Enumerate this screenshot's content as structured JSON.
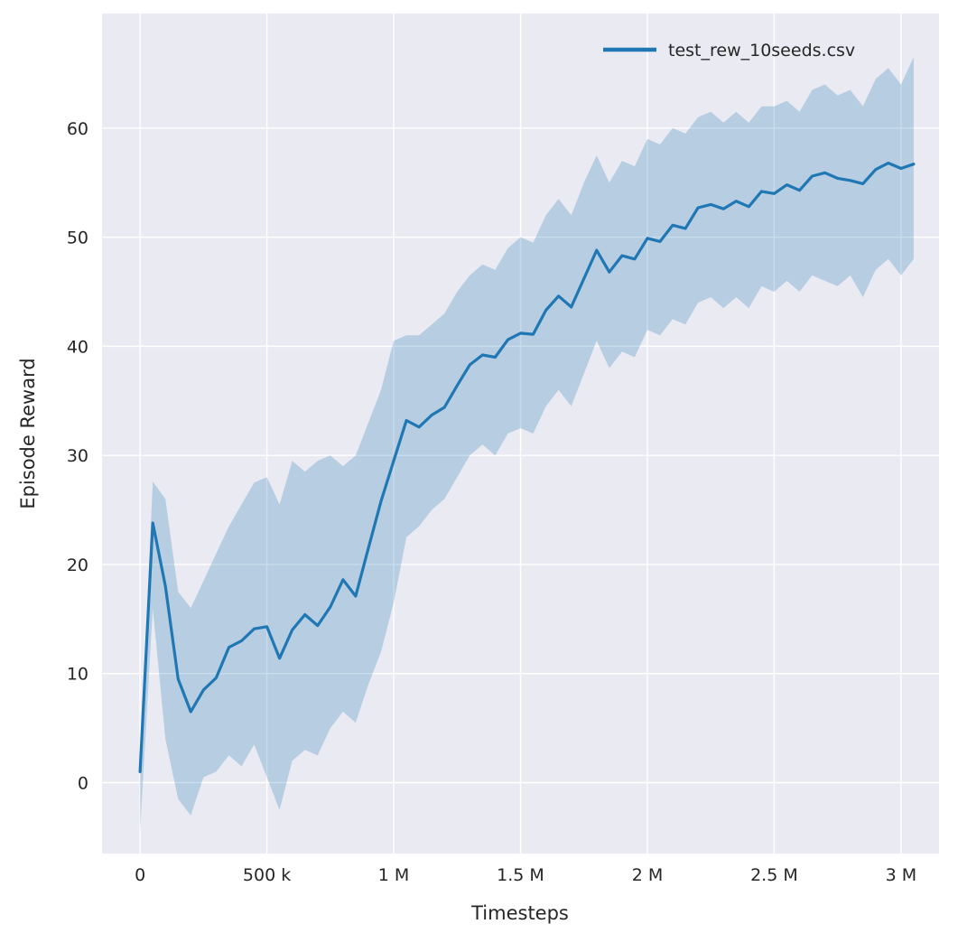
{
  "figure": {
    "background": "#ffffff",
    "axes_background": "#eaeaf2",
    "grid_color": "#ffffff",
    "text_color": "#262626"
  },
  "chart_data": {
    "type": "line",
    "title": "",
    "xlabel": "Timesteps",
    "ylabel": "Episode Reward",
    "grid": true,
    "legend_position": "upper right",
    "xlim": [
      -150000,
      3150000
    ],
    "ylim": [
      -6.5,
      70.5
    ],
    "x_ticks": [
      {
        "value": 0,
        "label": "0"
      },
      {
        "value": 500000,
        "label": "500 k"
      },
      {
        "value": 1000000,
        "label": "1 M"
      },
      {
        "value": 1500000,
        "label": "1.5 M"
      },
      {
        "value": 2000000,
        "label": "2 M"
      },
      {
        "value": 2500000,
        "label": "2.5 M"
      },
      {
        "value": 3000000,
        "label": "3 M"
      }
    ],
    "y_ticks": [
      {
        "value": 0,
        "label": "0"
      },
      {
        "value": 10,
        "label": "10"
      },
      {
        "value": 20,
        "label": "20"
      },
      {
        "value": 30,
        "label": "30"
      },
      {
        "value": 40,
        "label": "40"
      },
      {
        "value": 50,
        "label": "50"
      },
      {
        "value": 60,
        "label": "60"
      }
    ],
    "series": [
      {
        "name": "test_rew_10seeds.csv",
        "color": "#1f77b4",
        "band_opacity": 0.25,
        "x": [
          0,
          50000,
          100000,
          150000,
          200000,
          250000,
          300000,
          350000,
          400000,
          450000,
          500000,
          550000,
          600000,
          650000,
          700000,
          750000,
          800000,
          850000,
          900000,
          950000,
          1000000,
          1050000,
          1100000,
          1150000,
          1200000,
          1250000,
          1300000,
          1350000,
          1400000,
          1450000,
          1500000,
          1550000,
          1600000,
          1650000,
          1700000,
          1750000,
          1800000,
          1850000,
          1900000,
          1950000,
          2000000,
          2050000,
          2100000,
          2150000,
          2200000,
          2250000,
          2300000,
          2350000,
          2400000,
          2450000,
          2500000,
          2550000,
          2600000,
          2650000,
          2700000,
          2750000,
          2800000,
          2850000,
          2900000,
          2950000,
          3000000,
          3050000
        ],
        "mean": [
          1.0,
          23.8,
          18.0,
          9.5,
          6.5,
          8.5,
          9.6,
          12.4,
          13.0,
          14.1,
          14.3,
          11.4,
          14.0,
          15.4,
          14.4,
          16.1,
          18.6,
          17.1,
          21.5,
          25.8,
          29.5,
          33.2,
          32.6,
          33.7,
          34.4,
          36.4,
          38.3,
          39.2,
          39.0,
          40.6,
          41.2,
          41.1,
          43.3,
          44.6,
          43.6,
          46.2,
          48.8,
          46.8,
          48.3,
          48.0,
          49.9,
          49.6,
          51.1,
          50.8,
          52.7,
          53.0,
          52.6,
          53.3,
          52.8,
          54.2,
          54.0,
          54.8,
          54.3,
          55.6,
          55.9,
          55.4,
          55.2,
          54.9,
          56.2,
          56.8,
          56.3,
          56.7
        ],
        "lower": [
          -4.5,
          16.0,
          4.0,
          -1.5,
          -3.0,
          0.5,
          1.0,
          2.5,
          1.5,
          3.5,
          0.5,
          -2.5,
          2.0,
          3.0,
          2.5,
          5.0,
          6.5,
          5.5,
          9.0,
          12.0,
          16.5,
          22.5,
          23.5,
          25.0,
          26.0,
          28.0,
          30.0,
          31.0,
          30.0,
          32.0,
          32.5,
          32.0,
          34.5,
          36.0,
          34.5,
          37.5,
          40.5,
          38.0,
          39.5,
          39.0,
          41.5,
          41.0,
          42.5,
          42.0,
          44.0,
          44.5,
          43.5,
          44.5,
          43.5,
          45.5,
          45.0,
          46.0,
          45.0,
          46.5,
          46.0,
          45.5,
          46.5,
          44.5,
          47.0,
          48.0,
          46.5,
          48.0
        ],
        "upper": [
          1.5,
          27.6,
          26.0,
          17.5,
          16.0,
          18.5,
          21.0,
          23.5,
          25.5,
          27.5,
          28.0,
          25.5,
          29.5,
          28.5,
          29.5,
          30.0,
          29.0,
          30.0,
          33.0,
          36.0,
          40.5,
          41.0,
          41.0,
          42.0,
          43.0,
          45.0,
          46.5,
          47.5,
          47.0,
          49.0,
          50.0,
          49.5,
          52.0,
          53.5,
          52.0,
          55.0,
          57.5,
          55.0,
          57.0,
          56.5,
          59.0,
          58.5,
          60.0,
          59.5,
          61.0,
          61.5,
          60.5,
          61.5,
          60.5,
          62.0,
          62.0,
          62.5,
          61.5,
          63.5,
          64.0,
          63.0,
          63.5,
          62.0,
          64.5,
          65.5,
          64.0,
          66.5
        ]
      }
    ]
  }
}
